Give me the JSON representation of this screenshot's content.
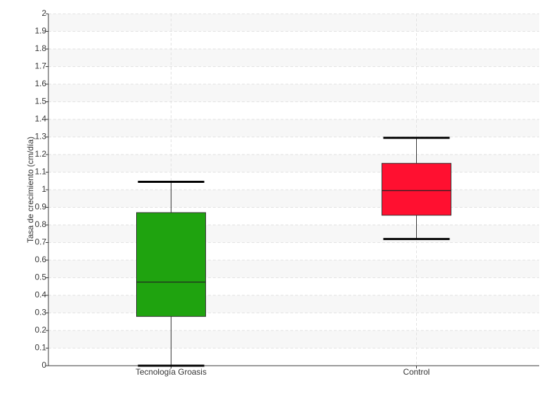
{
  "chart_data": {
    "type": "box",
    "y_label": "Tasa de crecimiento (cm/día)",
    "categories": [
      "Tecnología Groasis",
      "Control"
    ],
    "boxes": [
      {
        "min": 0,
        "q1": 0.28,
        "median": 0.475,
        "q3": 0.87,
        "max": 1.045,
        "color": "#1fa30f"
      },
      {
        "min": 0.72,
        "q1": 0.855,
        "median": 0.995,
        "q3": 1.15,
        "max": 1.295,
        "color": "#ff1030"
      }
    ],
    "ylim": [
      0,
      2
    ],
    "yticks": [
      0,
      0.1,
      0.2,
      0.3,
      0.4,
      0.5,
      0.6,
      0.7,
      0.8,
      0.9,
      1,
      1.1,
      1.2,
      1.3,
      1.4,
      1.5,
      1.6,
      1.7,
      1.8,
      1.9,
      2
    ],
    "grid": true
  }
}
